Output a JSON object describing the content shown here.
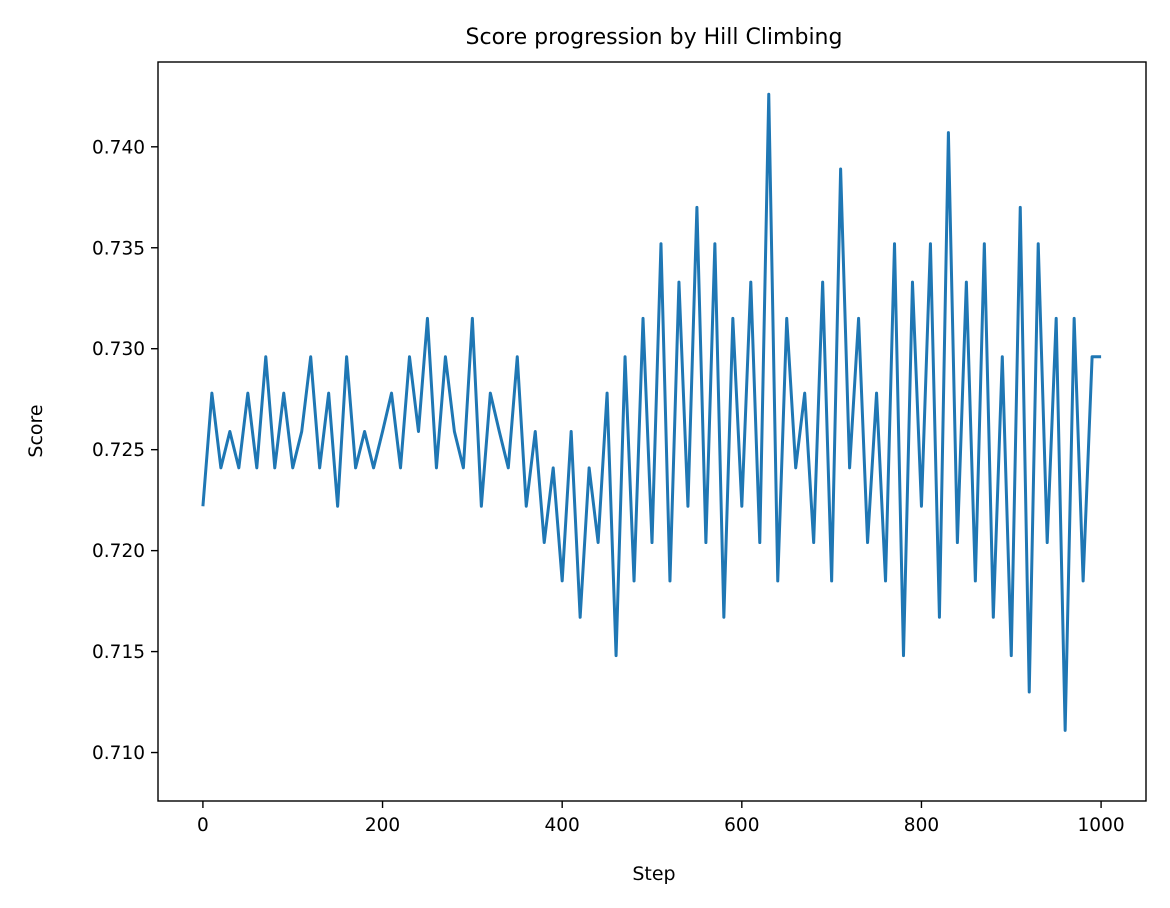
{
  "chart_data": {
    "type": "line",
    "title": "Score progression by Hill Climbing",
    "xlabel": "Step",
    "ylabel": "Score",
    "xlim": [
      -50,
      1050
    ],
    "ylim": [
      0.7076,
      0.7442
    ],
    "xticks": [
      0,
      200,
      400,
      600,
      800,
      1000
    ],
    "xtick_labels": [
      "0",
      "200",
      "400",
      "600",
      "800",
      "1000"
    ],
    "yticks": [
      0.71,
      0.715,
      0.72,
      0.725,
      0.73,
      0.735,
      0.74
    ],
    "ytick_labels": [
      "0.710",
      "0.715",
      "0.720",
      "0.725",
      "0.730",
      "0.735",
      "0.740"
    ],
    "grid": false,
    "legend": "none",
    "series": [
      {
        "color": "#1f77b4",
        "x_start": 0,
        "x_step": 10,
        "y": [
          0.7222,
          0.7278,
          0.7241,
          0.7259,
          0.7241,
          0.7278,
          0.7241,
          0.7296,
          0.7241,
          0.7278,
          0.7241,
          0.7259,
          0.7296,
          0.7241,
          0.7278,
          0.7222,
          0.7296,
          0.7241,
          0.7259,
          0.7241,
          0.7259,
          0.7278,
          0.7241,
          0.7296,
          0.7259,
          0.7315,
          0.7241,
          0.7296,
          0.7259,
          0.7241,
          0.7315,
          0.7222,
          0.7278,
          0.7259,
          0.7241,
          0.7296,
          0.7222,
          0.7259,
          0.7204,
          0.7241,
          0.7185,
          0.7259,
          0.7167,
          0.7241,
          0.7204,
          0.7278,
          0.7148,
          0.7296,
          0.7185,
          0.7315,
          0.7204,
          0.7352,
          0.7185,
          0.7333,
          0.7222,
          0.737,
          0.7204,
          0.7352,
          0.7167,
          0.7315,
          0.7222,
          0.7333,
          0.7204,
          0.7426,
          0.7185,
          0.7315,
          0.7241,
          0.7278,
          0.7204,
          0.7333,
          0.7185,
          0.7389,
          0.7241,
          0.7315,
          0.7204,
          0.7278,
          0.7185,
          0.7352,
          0.7148,
          0.7333,
          0.7222,
          0.7352,
          0.7167,
          0.7407,
          0.7204,
          0.7333,
          0.7185,
          0.7352,
          0.7167,
          0.7296,
          0.7148,
          0.737,
          0.713,
          0.7352,
          0.7204,
          0.7315,
          0.7111,
          0.7315,
          0.7185,
          0.7296,
          0.7296
        ]
      }
    ]
  }
}
